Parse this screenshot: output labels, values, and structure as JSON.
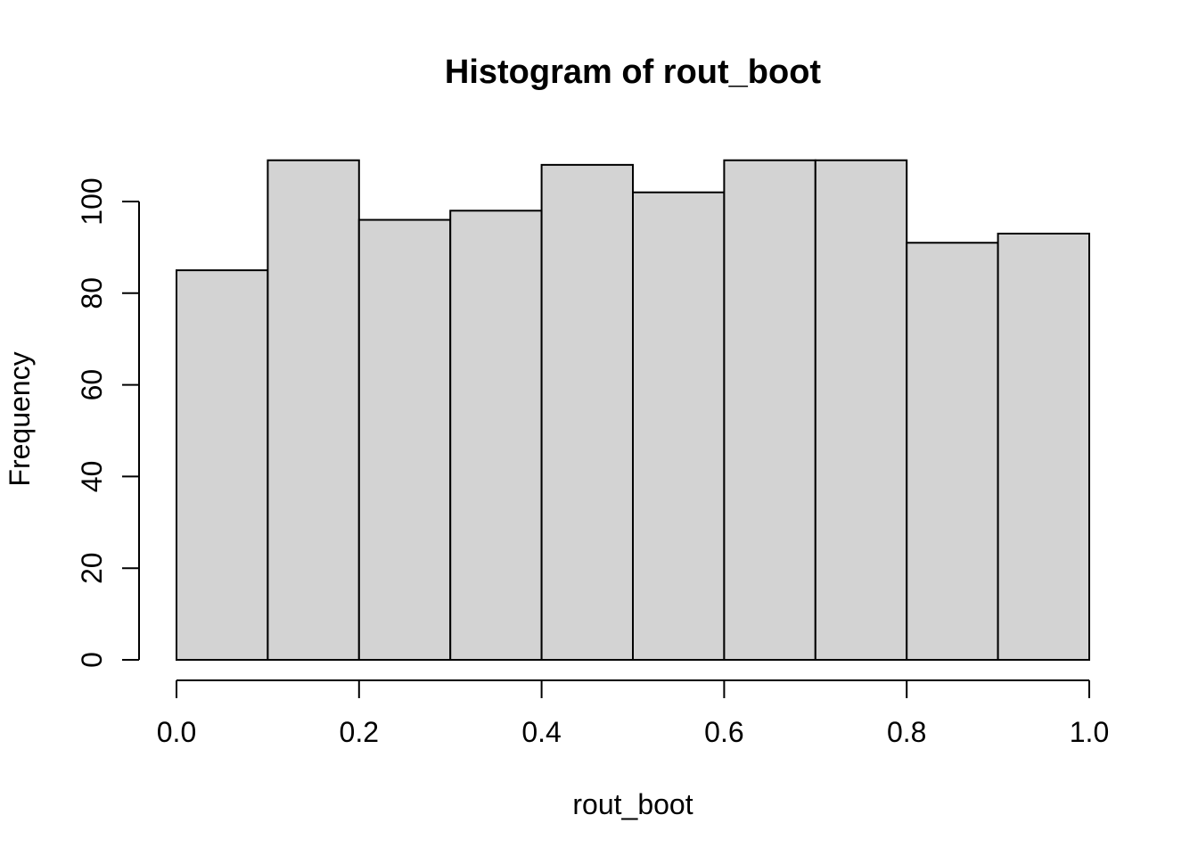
{
  "chart_data": {
    "type": "bar",
    "subtype": "histogram",
    "title": "Histogram of rout_boot",
    "xlabel": "rout_boot",
    "ylabel": "Frequency",
    "bin_edges": [
      0.0,
      0.1,
      0.2,
      0.3,
      0.4,
      0.5,
      0.6,
      0.7,
      0.8,
      0.9,
      1.0
    ],
    "values": [
      85,
      109,
      96,
      98,
      108,
      102,
      109,
      109,
      91,
      93
    ],
    "x_tick_labels": [
      "0.0",
      "0.2",
      "0.4",
      "0.6",
      "0.8",
      "1.0"
    ],
    "y_tick_values": [
      0,
      20,
      40,
      60,
      80,
      100
    ],
    "xlim": [
      0.0,
      1.0
    ],
    "ylim": [
      0,
      109
    ],
    "grid": false,
    "legend": false,
    "bar_fill": "#d3d3d3",
    "bar_stroke": "#000000",
    "axis_color": "#000000",
    "background": "#ffffff"
  }
}
